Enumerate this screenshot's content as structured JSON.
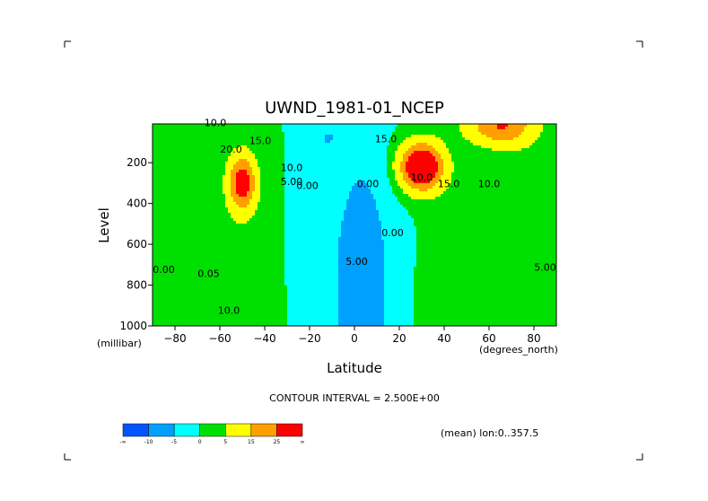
{
  "chart_data": {
    "type": "heatmap",
    "title": "UWND_1981-01_NCEP",
    "xlabel": "Latitude",
    "ylabel": "Level",
    "x_units": "(degrees_north)",
    "y_units": "(millibar)",
    "xlim": [
      -90,
      90
    ],
    "ylim": [
      1000,
      10
    ],
    "x_ticks": [
      -80,
      -60,
      -40,
      -20,
      0,
      20,
      40,
      60,
      80
    ],
    "y_ticks": [
      200,
      400,
      600,
      800,
      1000
    ],
    "contour_interval_text": "CONTOUR INTERVAL = 2.500E+00",
    "footnote": "(mean) lon:0..357.5",
    "colorbar": {
      "levels": [
        -10,
        -5,
        0,
        5,
        15,
        25
      ],
      "labels": [
        "-∞",
        "-10",
        "-5",
        "0",
        "5",
        "15",
        "25",
        "∞"
      ],
      "colors": [
        "#0055ff",
        "#00a0ff",
        "#00ffff",
        "#00e000",
        "#ffff00",
        "#ffa000",
        "#ff0000"
      ]
    },
    "jets": [
      {
        "lat": -50,
        "level": 300,
        "lat_sigma": 6,
        "lev_sigma": 130,
        "amp": 32
      },
      {
        "lat": 30,
        "level": 220,
        "lat_sigma": 9,
        "lev_sigma": 110,
        "amp": 45
      },
      {
        "lat": 65,
        "level": 20,
        "lat_sigma": 14,
        "lev_sigma": 90,
        "amp": 25
      }
    ],
    "contour_labels": [
      {
        "text": "10.0",
        "lat": -62,
        "level": 20
      },
      {
        "text": "15.0",
        "lat": -42,
        "level": 110
      },
      {
        "text": "20.0",
        "lat": -55,
        "level": 150
      },
      {
        "text": "10.0",
        "lat": -28,
        "level": 240
      },
      {
        "text": "5.00",
        "lat": -28,
        "level": 310
      },
      {
        "text": "0.00",
        "lat": -21,
        "level": 330
      },
      {
        "text": "0.00",
        "lat": -85,
        "level": 740
      },
      {
        "text": "0.05",
        "lat": -65,
        "level": 760
      },
      {
        "text": "10.0",
        "lat": -56,
        "level": 940
      },
      {
        "text": "0.00",
        "lat": 6,
        "level": 320
      },
      {
        "text": "0.00",
        "lat": 17,
        "level": 560
      },
      {
        "text": "5.00",
        "lat": 1,
        "level": 700
      },
      {
        "text": "15.0",
        "lat": 14,
        "level": 100
      },
      {
        "text": "15.0",
        "lat": 42,
        "level": 320
      },
      {
        "text": "10.0",
        "lat": 60,
        "level": 320
      },
      {
        "text": "10.0",
        "lat": 30,
        "level": 290
      },
      {
        "text": "5.00",
        "lat": 85,
        "level": 730
      }
    ]
  }
}
